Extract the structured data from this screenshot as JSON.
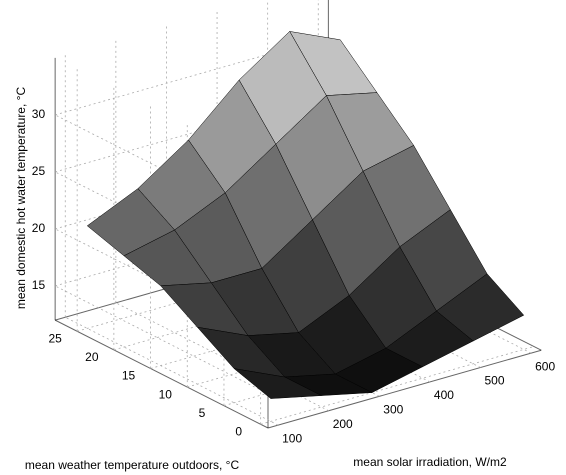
{
  "chart_data": {
    "type": "surface",
    "xlabel": "mean solar irradiation, W/m2",
    "ylabel": "mean weather temperature outdoors, °C",
    "zlabel": "mean domestic hot water temperature, °C",
    "x": [
      100,
      200,
      300,
      400,
      500,
      600
    ],
    "y": [
      0,
      5,
      10,
      15,
      20,
      25
    ],
    "z": [
      [
        14,
        13,
        12,
        13,
        14,
        15
      ],
      [
        15,
        13,
        12,
        13,
        15,
        17
      ],
      [
        17,
        15,
        14,
        16,
        19,
        21
      ],
      [
        19,
        18,
        18,
        21,
        24,
        25
      ],
      [
        20,
        21,
        23,
        26,
        29,
        28
      ],
      [
        21,
        23,
        26,
        30,
        33,
        31
      ]
    ],
    "xlim": [
      80,
      620
    ],
    "ylim": [
      -1,
      28
    ],
    "zlim": [
      12,
      35
    ],
    "xticks": [
      100,
      200,
      300,
      400,
      500,
      600
    ],
    "yticks": [
      0,
      5,
      10,
      15,
      20,
      25
    ],
    "zticks": [
      15,
      20,
      25,
      30
    ],
    "grid": true,
    "colormap": [
      "#0a0a0a",
      "#f2f2f2"
    ]
  }
}
